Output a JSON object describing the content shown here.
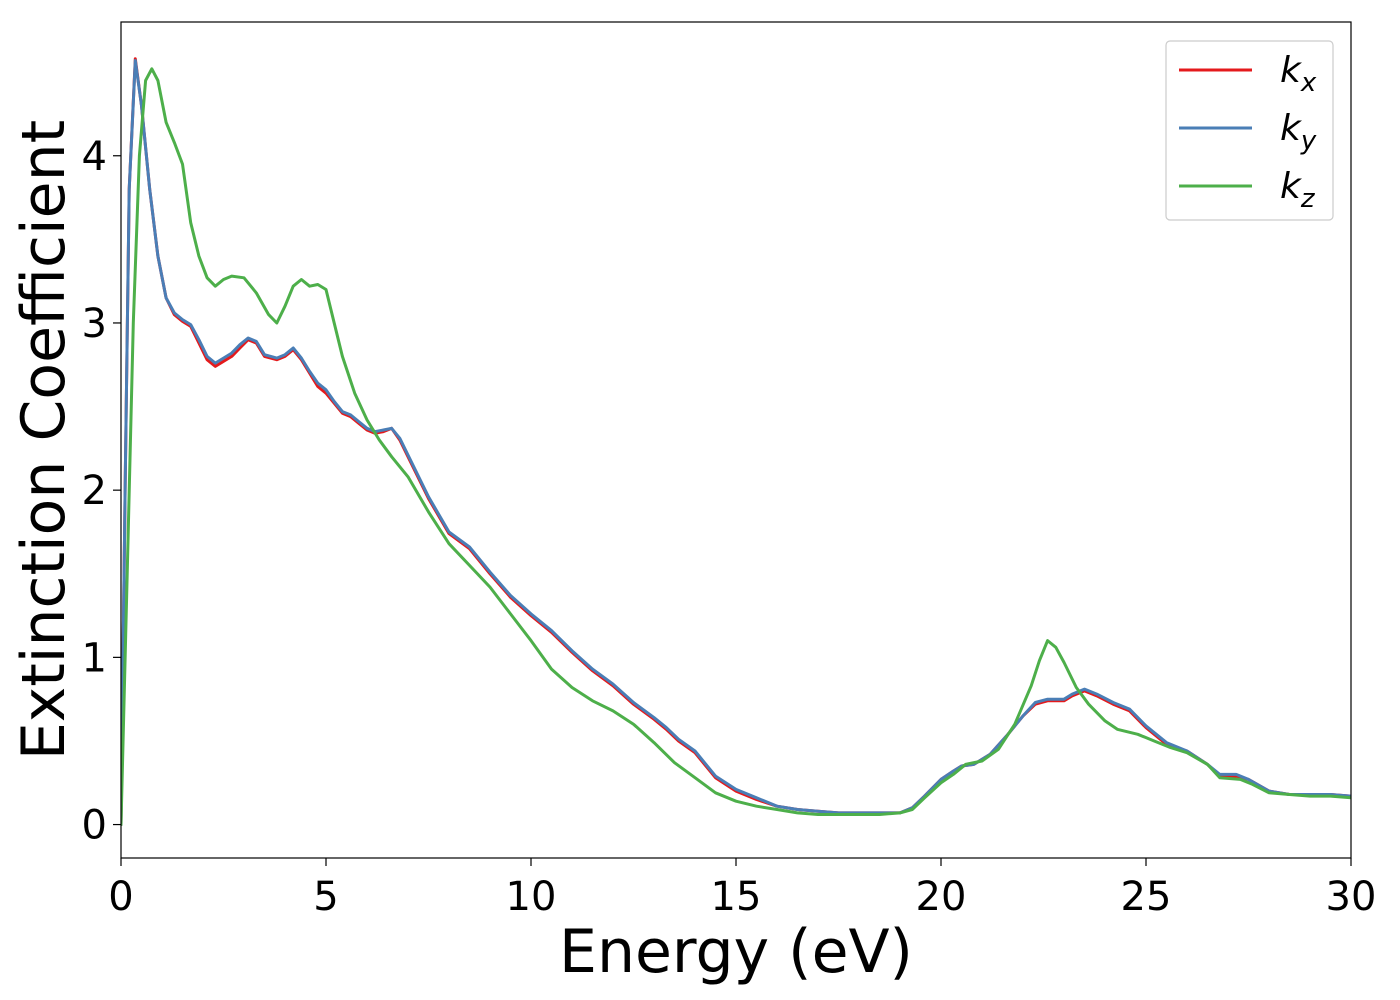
{
  "chart_data": {
    "type": "line",
    "title": "",
    "xlabel": "Energy (eV)",
    "ylabel": "Extinction Coefficient",
    "xlim": [
      0,
      30
    ],
    "ylim": [
      -0.2,
      4.8
    ],
    "xticks": [
      0,
      5,
      10,
      15,
      20,
      25,
      30
    ],
    "yticks": [
      0,
      1,
      2,
      3,
      4
    ],
    "grid": false,
    "legend_position": "top-right",
    "series": [
      {
        "name": "k",
        "subscript": "x",
        "color": "#e41a1c",
        "points": [
          [
            0,
            0
          ],
          [
            0.1,
            2.0
          ],
          [
            0.2,
            3.8
          ],
          [
            0.35,
            4.58
          ],
          [
            0.5,
            4.3
          ],
          [
            0.7,
            3.8
          ],
          [
            0.9,
            3.4
          ],
          [
            1.1,
            3.15
          ],
          [
            1.3,
            3.05
          ],
          [
            1.5,
            3.01
          ],
          [
            1.7,
            2.98
          ],
          [
            1.9,
            2.88
          ],
          [
            2.1,
            2.78
          ],
          [
            2.3,
            2.74
          ],
          [
            2.5,
            2.77
          ],
          [
            2.7,
            2.8
          ],
          [
            2.9,
            2.85
          ],
          [
            3.1,
            2.9
          ],
          [
            3.3,
            2.88
          ],
          [
            3.5,
            2.8
          ],
          [
            3.8,
            2.78
          ],
          [
            4.0,
            2.8
          ],
          [
            4.2,
            2.84
          ],
          [
            4.4,
            2.78
          ],
          [
            4.6,
            2.7
          ],
          [
            4.8,
            2.62
          ],
          [
            5.0,
            2.58
          ],
          [
            5.2,
            2.52
          ],
          [
            5.4,
            2.46
          ],
          [
            5.6,
            2.44
          ],
          [
            5.8,
            2.4
          ],
          [
            6.0,
            2.36
          ],
          [
            6.2,
            2.34
          ],
          [
            6.4,
            2.35
          ],
          [
            6.6,
            2.37
          ],
          [
            6.8,
            2.3
          ],
          [
            7.0,
            2.2
          ],
          [
            7.5,
            1.95
          ],
          [
            8.0,
            1.74
          ],
          [
            8.5,
            1.65
          ],
          [
            9.0,
            1.5
          ],
          [
            9.5,
            1.36
          ],
          [
            10.0,
            1.25
          ],
          [
            10.5,
            1.15
          ],
          [
            11.0,
            1.03
          ],
          [
            11.5,
            0.92
          ],
          [
            12.0,
            0.83
          ],
          [
            12.5,
            0.72
          ],
          [
            13.0,
            0.63
          ],
          [
            13.3,
            0.57
          ],
          [
            13.6,
            0.5
          ],
          [
            14.0,
            0.43
          ],
          [
            14.5,
            0.28
          ],
          [
            15.0,
            0.2
          ],
          [
            15.5,
            0.15
          ],
          [
            16.0,
            0.11
          ],
          [
            16.5,
            0.09
          ],
          [
            17.0,
            0.08
          ],
          [
            17.5,
            0.07
          ],
          [
            18.0,
            0.07
          ],
          [
            18.5,
            0.07
          ],
          [
            19.0,
            0.07
          ],
          [
            19.3,
            0.1
          ],
          [
            19.6,
            0.17
          ],
          [
            20.0,
            0.27
          ],
          [
            20.3,
            0.32
          ],
          [
            20.5,
            0.35
          ],
          [
            20.8,
            0.36
          ],
          [
            21.2,
            0.42
          ],
          [
            21.6,
            0.53
          ],
          [
            22.0,
            0.65
          ],
          [
            22.3,
            0.72
          ],
          [
            22.6,
            0.74
          ],
          [
            23.0,
            0.74
          ],
          [
            23.2,
            0.77
          ],
          [
            23.5,
            0.8
          ],
          [
            23.8,
            0.77
          ],
          [
            24.2,
            0.72
          ],
          [
            24.6,
            0.68
          ],
          [
            25.0,
            0.58
          ],
          [
            25.5,
            0.48
          ],
          [
            26.0,
            0.44
          ],
          [
            26.5,
            0.36
          ],
          [
            26.8,
            0.29
          ],
          [
            27.2,
            0.29
          ],
          [
            27.5,
            0.27
          ],
          [
            28.0,
            0.2
          ],
          [
            28.5,
            0.18
          ],
          [
            29.0,
            0.18
          ],
          [
            29.5,
            0.18
          ],
          [
            30.0,
            0.17
          ]
        ]
      },
      {
        "name": "k",
        "subscript": "y",
        "color": "#4a7eb6",
        "points": [
          [
            0,
            0
          ],
          [
            0.1,
            2.0
          ],
          [
            0.2,
            3.8
          ],
          [
            0.35,
            4.57
          ],
          [
            0.5,
            4.3
          ],
          [
            0.7,
            3.8
          ],
          [
            0.9,
            3.4
          ],
          [
            1.1,
            3.15
          ],
          [
            1.3,
            3.06
          ],
          [
            1.5,
            3.02
          ],
          [
            1.7,
            2.99
          ],
          [
            1.9,
            2.9
          ],
          [
            2.1,
            2.8
          ],
          [
            2.3,
            2.76
          ],
          [
            2.5,
            2.79
          ],
          [
            2.7,
            2.82
          ],
          [
            2.9,
            2.87
          ],
          [
            3.1,
            2.91
          ],
          [
            3.3,
            2.89
          ],
          [
            3.5,
            2.81
          ],
          [
            3.8,
            2.79
          ],
          [
            4.0,
            2.81
          ],
          [
            4.2,
            2.85
          ],
          [
            4.4,
            2.79
          ],
          [
            4.6,
            2.71
          ],
          [
            4.8,
            2.64
          ],
          [
            5.0,
            2.6
          ],
          [
            5.2,
            2.53
          ],
          [
            5.4,
            2.47
          ],
          [
            5.6,
            2.45
          ],
          [
            5.8,
            2.41
          ],
          [
            6.0,
            2.37
          ],
          [
            6.2,
            2.35
          ],
          [
            6.4,
            2.36
          ],
          [
            6.6,
            2.37
          ],
          [
            6.8,
            2.31
          ],
          [
            7.0,
            2.21
          ],
          [
            7.5,
            1.96
          ],
          [
            8.0,
            1.75
          ],
          [
            8.5,
            1.66
          ],
          [
            9.0,
            1.51
          ],
          [
            9.5,
            1.37
          ],
          [
            10.0,
            1.26
          ],
          [
            10.5,
            1.16
          ],
          [
            11.0,
            1.04
          ],
          [
            11.5,
            0.93
          ],
          [
            12.0,
            0.84
          ],
          [
            12.5,
            0.73
          ],
          [
            13.0,
            0.64
          ],
          [
            13.3,
            0.58
          ],
          [
            13.6,
            0.51
          ],
          [
            14.0,
            0.44
          ],
          [
            14.5,
            0.29
          ],
          [
            15.0,
            0.21
          ],
          [
            15.5,
            0.16
          ],
          [
            16.0,
            0.11
          ],
          [
            16.5,
            0.09
          ],
          [
            17.0,
            0.08
          ],
          [
            17.5,
            0.07
          ],
          [
            18.0,
            0.07
          ],
          [
            18.5,
            0.07
          ],
          [
            19.0,
            0.07
          ],
          [
            19.3,
            0.1
          ],
          [
            19.6,
            0.17
          ],
          [
            20.0,
            0.27
          ],
          [
            20.3,
            0.32
          ],
          [
            20.5,
            0.35
          ],
          [
            20.8,
            0.36
          ],
          [
            21.2,
            0.42
          ],
          [
            21.6,
            0.53
          ],
          [
            22.0,
            0.65
          ],
          [
            22.3,
            0.73
          ],
          [
            22.6,
            0.75
          ],
          [
            23.0,
            0.75
          ],
          [
            23.2,
            0.78
          ],
          [
            23.5,
            0.81
          ],
          [
            23.8,
            0.78
          ],
          [
            24.2,
            0.73
          ],
          [
            24.6,
            0.69
          ],
          [
            25.0,
            0.59
          ],
          [
            25.5,
            0.49
          ],
          [
            26.0,
            0.44
          ],
          [
            26.5,
            0.36
          ],
          [
            26.8,
            0.3
          ],
          [
            27.2,
            0.3
          ],
          [
            27.5,
            0.27
          ],
          [
            28.0,
            0.2
          ],
          [
            28.5,
            0.18
          ],
          [
            29.0,
            0.18
          ],
          [
            29.5,
            0.18
          ],
          [
            30.0,
            0.17
          ]
        ]
      },
      {
        "name": "k",
        "subscript": "z",
        "color": "#4daf4a",
        "points": [
          [
            0,
            0
          ],
          [
            0.15,
            1.5
          ],
          [
            0.3,
            3.0
          ],
          [
            0.45,
            4.0
          ],
          [
            0.6,
            4.45
          ],
          [
            0.75,
            4.52
          ],
          [
            0.9,
            4.45
          ],
          [
            1.1,
            4.2
          ],
          [
            1.3,
            4.08
          ],
          [
            1.5,
            3.95
          ],
          [
            1.7,
            3.6
          ],
          [
            1.9,
            3.4
          ],
          [
            2.1,
            3.27
          ],
          [
            2.3,
            3.22
          ],
          [
            2.5,
            3.26
          ],
          [
            2.7,
            3.28
          ],
          [
            3.0,
            3.27
          ],
          [
            3.3,
            3.18
          ],
          [
            3.6,
            3.05
          ],
          [
            3.8,
            3.0
          ],
          [
            4.0,
            3.1
          ],
          [
            4.2,
            3.22
          ],
          [
            4.4,
            3.26
          ],
          [
            4.6,
            3.22
          ],
          [
            4.8,
            3.23
          ],
          [
            5.0,
            3.2
          ],
          [
            5.2,
            3.0
          ],
          [
            5.4,
            2.8
          ],
          [
            5.7,
            2.58
          ],
          [
            6.0,
            2.42
          ],
          [
            6.3,
            2.3
          ],
          [
            6.6,
            2.2
          ],
          [
            7.0,
            2.08
          ],
          [
            7.5,
            1.87
          ],
          [
            8.0,
            1.68
          ],
          [
            8.5,
            1.55
          ],
          [
            9.0,
            1.42
          ],
          [
            9.5,
            1.26
          ],
          [
            10.0,
            1.1
          ],
          [
            10.5,
            0.93
          ],
          [
            11.0,
            0.82
          ],
          [
            11.5,
            0.74
          ],
          [
            12.0,
            0.68
          ],
          [
            12.5,
            0.6
          ],
          [
            13.0,
            0.49
          ],
          [
            13.5,
            0.37
          ],
          [
            14.0,
            0.28
          ],
          [
            14.5,
            0.19
          ],
          [
            15.0,
            0.14
          ],
          [
            15.5,
            0.11
          ],
          [
            16.0,
            0.09
          ],
          [
            16.5,
            0.07
          ],
          [
            17.0,
            0.06
          ],
          [
            17.5,
            0.06
          ],
          [
            18.0,
            0.06
          ],
          [
            18.5,
            0.06
          ],
          [
            19.0,
            0.07
          ],
          [
            19.3,
            0.09
          ],
          [
            19.6,
            0.16
          ],
          [
            20.0,
            0.25
          ],
          [
            20.3,
            0.3
          ],
          [
            20.6,
            0.36
          ],
          [
            21.0,
            0.38
          ],
          [
            21.4,
            0.45
          ],
          [
            21.8,
            0.6
          ],
          [
            22.2,
            0.83
          ],
          [
            22.4,
            0.98
          ],
          [
            22.6,
            1.1
          ],
          [
            22.8,
            1.06
          ],
          [
            23.0,
            0.97
          ],
          [
            23.3,
            0.82
          ],
          [
            23.6,
            0.72
          ],
          [
            24.0,
            0.62
          ],
          [
            24.3,
            0.57
          ],
          [
            24.8,
            0.54
          ],
          [
            25.2,
            0.5
          ],
          [
            25.6,
            0.46
          ],
          [
            26.0,
            0.43
          ],
          [
            26.5,
            0.36
          ],
          [
            26.8,
            0.28
          ],
          [
            27.3,
            0.27
          ],
          [
            27.6,
            0.24
          ],
          [
            28.0,
            0.19
          ],
          [
            28.5,
            0.18
          ],
          [
            29.0,
            0.17
          ],
          [
            29.5,
            0.17
          ],
          [
            30.0,
            0.16
          ]
        ]
      }
    ]
  }
}
